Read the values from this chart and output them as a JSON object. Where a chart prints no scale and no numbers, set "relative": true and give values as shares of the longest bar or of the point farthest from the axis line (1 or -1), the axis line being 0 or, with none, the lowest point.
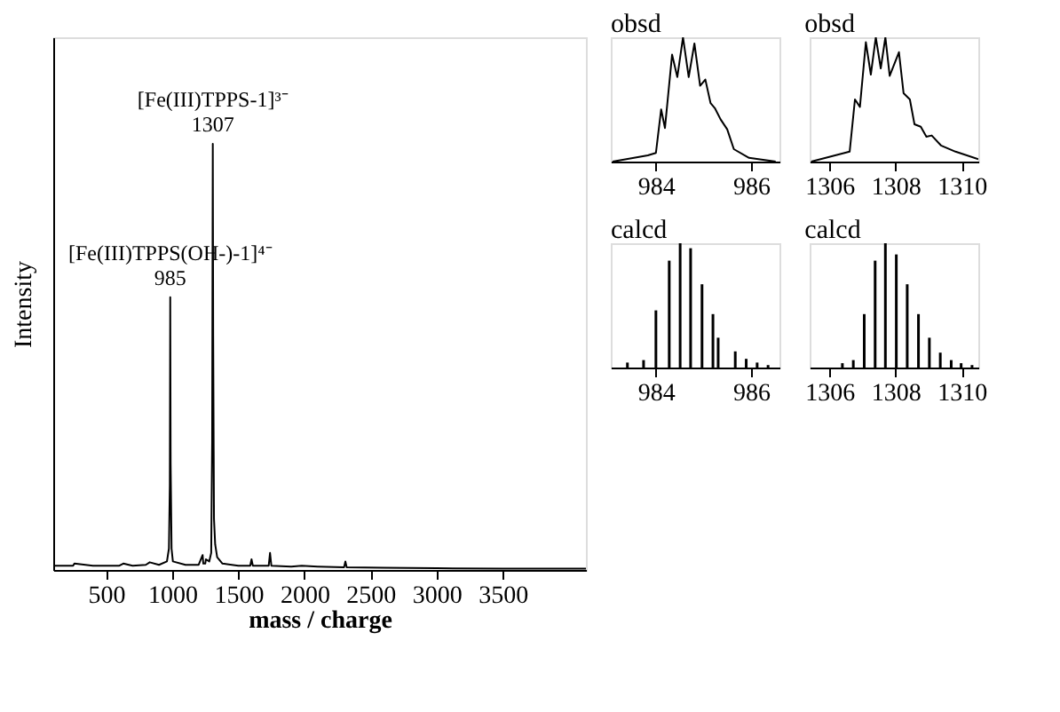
{
  "chart_data": [
    {
      "type": "line",
      "relative": true,
      "xlabel": "mass / charge",
      "ylabel": "Intensity",
      "xlim": [
        100,
        4130
      ],
      "xticks": [
        500,
        1000,
        1500,
        2000,
        2500,
        3000,
        3500
      ],
      "grid": false,
      "x": [
        100,
        250,
        260,
        400,
        600,
        630,
        700,
        800,
        830,
        900,
        960,
        975,
        982,
        985,
        988,
        995,
        1005,
        1100,
        1200,
        1230,
        1235,
        1250,
        1255,
        1280,
        1295,
        1302,
        1307,
        1310,
        1316,
        1325,
        1340,
        1380,
        1500,
        1590,
        1600,
        1610,
        1730,
        1740,
        1750,
        1900,
        1980,
        2100,
        2300,
        2310,
        2320,
        2600,
        3000,
        3500,
        4130
      ],
      "series": [
        {
          "color": "#000000",
          "values": [
            0.01,
            0.01,
            0.015,
            0.01,
            0.01,
            0.015,
            0.01,
            0.012,
            0.018,
            0.012,
            0.02,
            0.05,
            0.2,
            0.64,
            0.25,
            0.05,
            0.02,
            0.012,
            0.012,
            0.035,
            0.015,
            0.015,
            0.025,
            0.02,
            0.04,
            0.3,
            1.0,
            0.55,
            0.12,
            0.06,
            0.03,
            0.015,
            0.01,
            0.01,
            0.025,
            0.01,
            0.01,
            0.04,
            0.01,
            0.008,
            0.01,
            0.008,
            0.006,
            0.02,
            0.006,
            0.005,
            0.004,
            0.003,
            0.003
          ]
        }
      ],
      "annotations": [
        {
          "text": "[Fe(III)TPPS(OH-)-1]⁴⁻\n985",
          "x": 985,
          "y": 0.64
        },
        {
          "text": "[Fe(III)TPPS-1]³⁻\n1307",
          "x": 1307,
          "y": 1.0
        }
      ]
    },
    {
      "type": "line",
      "relative": true,
      "title": "obsd",
      "xlim": [
        983.05,
        986.6
      ],
      "xticks": [
        984,
        986
      ],
      "grid": false,
      "x": [
        983.09,
        983.83,
        984.0,
        984.11,
        984.19,
        984.34,
        984.45,
        984.57,
        984.69,
        984.81,
        984.93,
        985.04,
        985.15,
        985.24,
        985.36,
        985.5,
        985.64,
        985.96,
        986.52
      ],
      "series": [
        {
          "color": "#000000",
          "values": [
            0,
            0.05,
            0.07,
            0.42,
            0.27,
            0.86,
            0.68,
            1.0,
            0.68,
            0.95,
            0.61,
            0.66,
            0.47,
            0.43,
            0.34,
            0.26,
            0.1,
            0.03,
            0
          ]
        }
      ]
    },
    {
      "type": "line",
      "relative": true,
      "title": "obsd",
      "xlim": [
        1305.4,
        1310.5
      ],
      "xticks": [
        1306,
        1308,
        1310
      ],
      "grid": false,
      "x": [
        1305.45,
        1306.61,
        1306.77,
        1306.92,
        1307.1,
        1307.25,
        1307.4,
        1307.55,
        1307.69,
        1307.82,
        1308.1,
        1308.24,
        1308.43,
        1308.57,
        1308.76,
        1308.93,
        1309.09,
        1309.37,
        1309.81,
        1310.5
      ],
      "series": [
        {
          "color": "#000000",
          "values": [
            0,
            0.08,
            0.5,
            0.44,
            0.96,
            0.7,
            1.0,
            0.75,
            1.0,
            0.69,
            0.88,
            0.55,
            0.5,
            0.3,
            0.28,
            0.2,
            0.21,
            0.13,
            0.08,
            0.02
          ]
        }
      ]
    },
    {
      "type": "bar",
      "relative": true,
      "title": "calcd",
      "xlim": [
        983.05,
        986.6
      ],
      "xticks": [
        984,
        986
      ],
      "grid": false,
      "x": [
        983.4,
        983.74,
        984.0,
        984.28,
        984.51,
        984.73,
        984.97,
        985.2,
        985.31,
        985.67,
        985.9,
        986.13,
        986.36
      ],
      "series": [
        {
          "color": "#000000",
          "values": [
            0.04,
            0.06,
            0.46,
            0.86,
            1.0,
            0.96,
            0.67,
            0.43,
            0.24,
            0.13,
            0.07,
            0.04,
            0.02
          ]
        }
      ]
    },
    {
      "type": "bar",
      "relative": true,
      "title": "calcd",
      "xlim": [
        1305.4,
        1310.5
      ],
      "xticks": [
        1306,
        1308,
        1310
      ],
      "grid": false,
      "x": [
        1306.39,
        1306.72,
        1307.05,
        1307.38,
        1307.69,
        1308.02,
        1308.35,
        1308.69,
        1309.02,
        1309.35,
        1309.68,
        1309.98,
        1310.31
      ],
      "series": [
        {
          "color": "#000000",
          "values": [
            0.035,
            0.06,
            0.43,
            0.86,
            1.0,
            0.91,
            0.67,
            0.43,
            0.24,
            0.12,
            0.06,
            0.035,
            0.02
          ]
        }
      ]
    }
  ]
}
